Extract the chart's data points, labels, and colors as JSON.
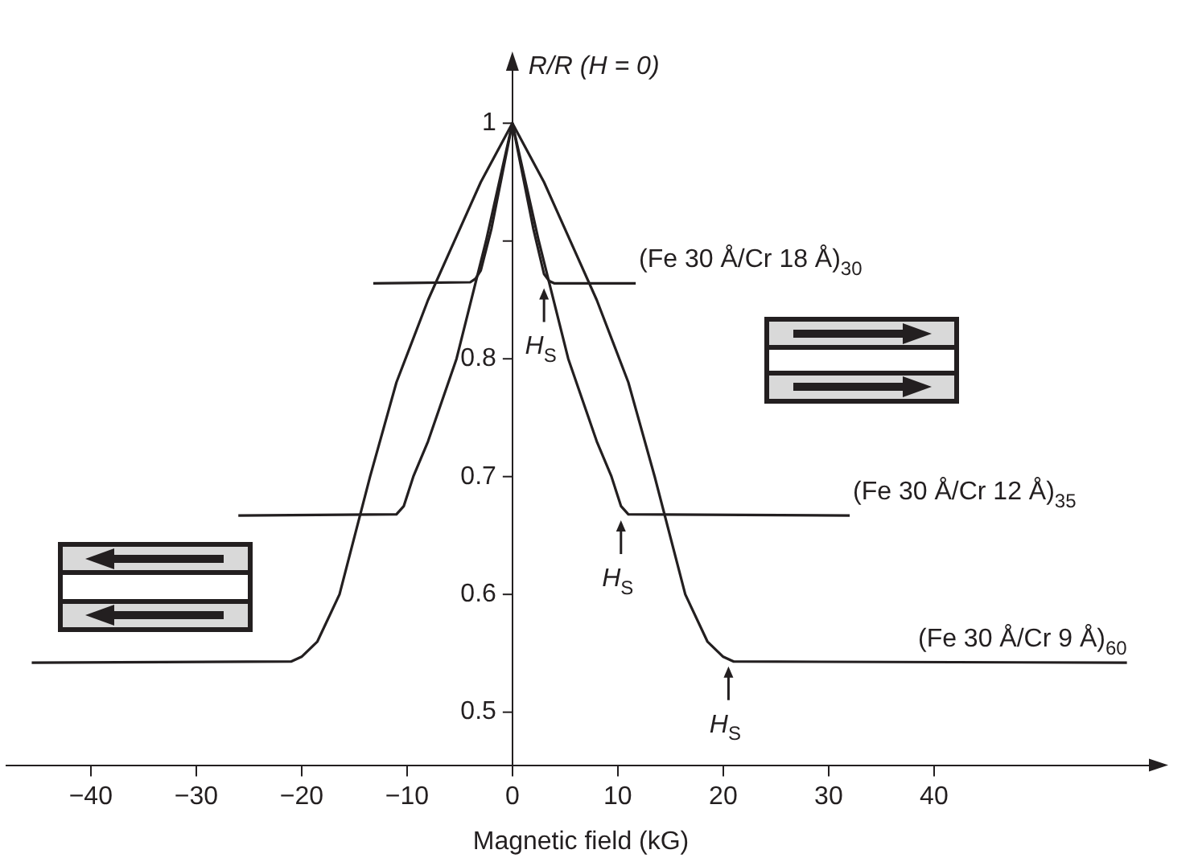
{
  "chart_data": {
    "type": "line",
    "xlabel": "Magnetic field (kG)",
    "ylabel": "R/R (H = 0)",
    "xlim": [
      -48,
      61
    ],
    "ylim": [
      0.455,
      1.05
    ],
    "xticks": [
      -40,
      -30,
      -20,
      -10,
      0,
      10,
      20,
      30,
      40
    ],
    "yticks": [
      0.5,
      0.6,
      0.7,
      0.8,
      {
        "value": 0.9,
        "label": null
      },
      1
    ],
    "grid": false,
    "legend": false,
    "marker": "none",
    "line_style": "solid",
    "series": [
      {
        "name": "(Fe 30 Å/Cr 18 Å)$_{30}$",
        "color": "#231f20",
        "x": [
          -13.2,
          -4,
          -3.5,
          -3,
          -2,
          -1,
          0,
          1,
          2,
          3,
          3.5,
          4,
          11.7
        ],
        "values": [
          0.864,
          0.865,
          0.868,
          0.875,
          0.91,
          0.955,
          1,
          0.955,
          0.91,
          0.872,
          0.866,
          0.864,
          0.864
        ]
      },
      {
        "name": "(Fe 30 Å/Cr 12 Å)$_{35}$",
        "color": "#231f20",
        "x": [
          -26,
          -11,
          -10.3,
          -9.4,
          -8,
          -5.3,
          -2.5,
          0,
          2.5,
          5.3,
          8,
          9.4,
          10.3,
          11,
          32
        ],
        "values": [
          0.667,
          0.668,
          0.675,
          0.7,
          0.73,
          0.8,
          0.9,
          1,
          0.9,
          0.8,
          0.73,
          0.7,
          0.675,
          0.668,
          0.667
        ]
      },
      {
        "name": "(Fe 30 Å/Cr 9 Å)$_{60}$",
        "color": "#231f20",
        "x": [
          -45.6,
          -21,
          -20,
          -18.5,
          -16.4,
          -13.5,
          -11,
          -8,
          -6,
          -3,
          0,
          3,
          6,
          8,
          11,
          13.5,
          16.4,
          18.5,
          20,
          21,
          58.3
        ],
        "values": [
          0.542,
          0.543,
          0.547,
          0.56,
          0.6,
          0.7,
          0.78,
          0.85,
          0.89,
          0.95,
          1,
          0.95,
          0.89,
          0.85,
          0.78,
          0.7,
          0.6,
          0.56,
          0.547,
          0.543,
          0.542
        ]
      }
    ],
    "annotations": [
      {
        "text": "H$_{S}$",
        "x": 3,
        "y": 0.864
      },
      {
        "text": "H$_{S}$",
        "x": 10.3,
        "y": 0.667
      },
      {
        "text": "H$_{S}$",
        "x": 20.5,
        "y": 0.543
      }
    ]
  }
}
